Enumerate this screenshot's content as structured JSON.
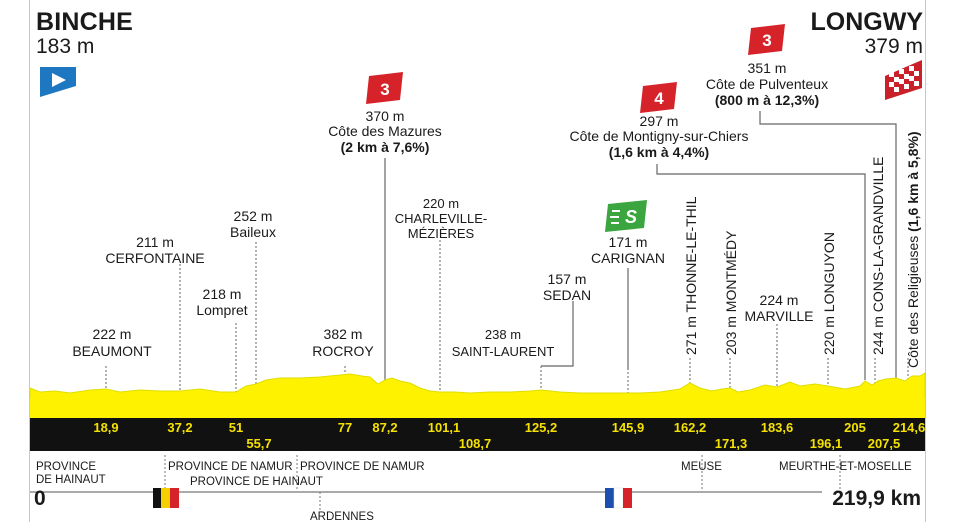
{
  "header": {
    "start": {
      "name": "BINCHE",
      "altitude": "183 m"
    },
    "finish": {
      "name": "LONGWY",
      "altitude": "379 m"
    }
  },
  "colors": {
    "profile_fill": "#fff200",
    "profile_line": "#dede00",
    "km_bar": "#111111",
    "km_text": "#f5e100",
    "climb_badge": "#d6232a",
    "sprint_badge": "#3ba53f",
    "start_flag": "#1d78c1",
    "finish_flag": "#c9202a",
    "leader": "#666666"
  },
  "icons": {
    "start": "start-flag-icon",
    "finish": "checkered-finish-flag-icon",
    "climb": "climb-category-icon",
    "sprint": "intermediate-sprint-icon",
    "belgium": "belgium-flag-icon",
    "france": "france-flag-icon"
  },
  "climbs": [
    {
      "category": "3",
      "altitude": "370 m",
      "name": "Côte des Mazures",
      "detail": "(2 km à 7,6%)"
    },
    {
      "category": "4",
      "altitude": "297 m",
      "name": "Côte de Montigny-sur-Chiers",
      "detail": "(1,6 km à 4,4%)"
    },
    {
      "category": "3",
      "altitude": "351 m",
      "name": "Côte de Pulventeux",
      "detail": "(800 m à 12,3%)"
    }
  ],
  "final_climb": {
    "label": "Côte des Religieuses",
    "detail": "(1,6 km à 5,8%)"
  },
  "sprint": {
    "badge": "S",
    "altitude": "171 m",
    "name": "CARIGNAN"
  },
  "points": [
    {
      "altitude": "222 m",
      "name": "BEAUMONT",
      "km": "18,9"
    },
    {
      "altitude": "211 m",
      "name": "CERFONTAINE",
      "km": "37,2"
    },
    {
      "altitude": "218 m",
      "name": "Lompret",
      "km": "51"
    },
    {
      "altitude": "252 m",
      "name": "Baileux",
      "km": "55,7"
    },
    {
      "altitude": "382 m",
      "name": "ROCROY",
      "km": "77"
    },
    {
      "altitude": "",
      "name": "",
      "km": "87,2"
    },
    {
      "altitude": "220 m",
      "name": "CHARLEVILLE-",
      "name2": "MÉZIÈRES",
      "km": "101,1"
    },
    {
      "altitude": "238 m",
      "name": "SAINT-LAURENT",
      "km": "108,7"
    },
    {
      "altitude": "157 m",
      "name": "SEDAN",
      "km": "125,2"
    },
    {
      "altitude": "",
      "name": "",
      "km": "145,9"
    },
    {
      "altitude": "",
      "name": "",
      "km": "162,2"
    },
    {
      "altitude": "",
      "name": "",
      "km": "171,3"
    },
    {
      "altitude": "224 m",
      "name": "MARVILLE",
      "km": "183,6"
    },
    {
      "altitude": "",
      "name": "",
      "km": "196,1"
    },
    {
      "altitude": "",
      "name": "",
      "km": "205"
    },
    {
      "altitude": "",
      "name": "",
      "km": "207,5"
    },
    {
      "altitude": "",
      "name": "",
      "km": "214,6"
    }
  ],
  "vertical_labels": [
    "271 m THONNE-LE-THIL",
    "203 m MONTMÉDY",
    "220 m LONGUYON",
    "244 m CONS-LA-GRANDVILLE"
  ],
  "distance": {
    "start": "0",
    "total": "219,9 km"
  },
  "regions": {
    "province_hainaut_1": "PROVINCE",
    "province_hainaut_2": "DE HAINAUT",
    "province_namur_1": "PROVINCE DE NAMUR",
    "province_hainaut_b": "PROVINCE DE HAINAUT",
    "province_namur_2": "PROVINCE DE NAMUR",
    "ardennes": "ARDENNES",
    "meuse": "MEUSE",
    "meurthe": "MEURTHE-ET-MOSELLE"
  }
}
